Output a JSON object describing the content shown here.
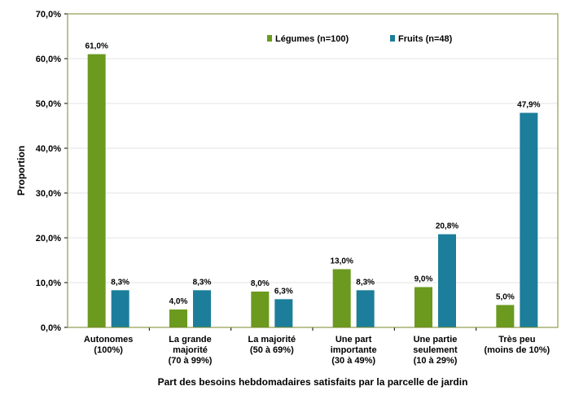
{
  "chart_data": {
    "type": "bar",
    "title": "",
    "xlabel": "Part des besoins hebdomadaires satisfaits par la parcelle de jardin",
    "ylabel": "Proportion",
    "ylim": [
      0,
      70
    ],
    "yticks": [
      "0,0%",
      "10,0%",
      "20,0%",
      "30,0%",
      "40,0%",
      "50,0%",
      "60,0%",
      "70,0%"
    ],
    "grid": true,
    "legend_position": "top-right",
    "categories": [
      [
        "Autonomes",
        "(100%)"
      ],
      [
        "La grande",
        "majorité",
        "(70 à 99%)"
      ],
      [
        "La majorité",
        "(50 à 69%)"
      ],
      [
        "Une part",
        "importante",
        "(30 à 49%)"
      ],
      [
        "Une partie",
        "seulement",
        "(10 à 29%)"
      ],
      [
        "Très peu",
        "(moins de 10%)"
      ]
    ],
    "series": [
      {
        "name": "Légumes (n=100)",
        "color": "#6b9a1f",
        "values": [
          61.0,
          4.0,
          8.0,
          13.0,
          9.0,
          5.0
        ],
        "labels": [
          "61,0%",
          "4,0%",
          "8,0%",
          "13,0%",
          "9,0%",
          "5,0%"
        ]
      },
      {
        "name": "Fruits (n=48)",
        "color": "#1c7e9a",
        "values": [
          8.3,
          8.3,
          6.3,
          8.3,
          20.8,
          47.9
        ],
        "labels": [
          "8,3%",
          "8,3%",
          "6,3%",
          "8,3%",
          "20,8%",
          "47,9%"
        ]
      }
    ],
    "frame_color": "#7a8a2a"
  }
}
